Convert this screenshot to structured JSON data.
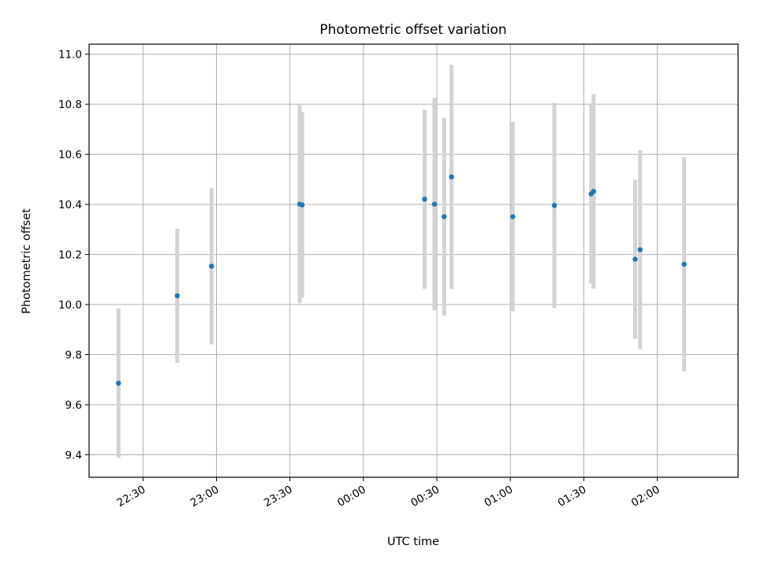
{
  "chart_data": {
    "type": "scatter",
    "title": "Photometric offset variation",
    "xlabel": "UTC time",
    "ylabel": "Photometric offset",
    "grid": true,
    "xlim": [
      "22:08",
      "02:33"
    ],
    "ylim": [
      9.31,
      11.04
    ],
    "x_ticks": [
      "22:30",
      "23:00",
      "23:30",
      "00:00",
      "00:30",
      "01:00",
      "01:30",
      "02:00"
    ],
    "y_ticks": [
      9.4,
      9.6,
      9.8,
      10.0,
      10.2,
      10.4,
      10.6,
      10.8,
      11.0
    ],
    "marker_color": "#1f77b4",
    "errorbar_color": "#d3d3d3",
    "points": [
      {
        "x": "22:20",
        "y": 9.686,
        "err": 0.298
      },
      {
        "x": "22:44",
        "y": 10.035,
        "err": 0.268
      },
      {
        "x": "22:58",
        "y": 10.153,
        "err": 0.312
      },
      {
        "x": "23:34",
        "y": 10.401,
        "err": 0.395
      },
      {
        "x": "23:35",
        "y": 10.398,
        "err": 0.37
      },
      {
        "x": "00:25",
        "y": 10.421,
        "err": 0.358
      },
      {
        "x": "00:29",
        "y": 10.401,
        "err": 0.425
      },
      {
        "x": "00:33",
        "y": 10.351,
        "err": 0.395
      },
      {
        "x": "00:36",
        "y": 10.51,
        "err": 0.448
      },
      {
        "x": "01:01",
        "y": 10.351,
        "err": 0.378
      },
      {
        "x": "01:18",
        "y": 10.396,
        "err": 0.41
      },
      {
        "x": "01:33",
        "y": 10.442,
        "err": 0.358
      },
      {
        "x": "01:34",
        "y": 10.452,
        "err": 0.388
      },
      {
        "x": "01:51",
        "y": 10.181,
        "err": 0.318
      },
      {
        "x": "01:53",
        "y": 10.219,
        "err": 0.398
      },
      {
        "x": "02:11",
        "y": 10.161,
        "err": 0.428
      }
    ]
  }
}
